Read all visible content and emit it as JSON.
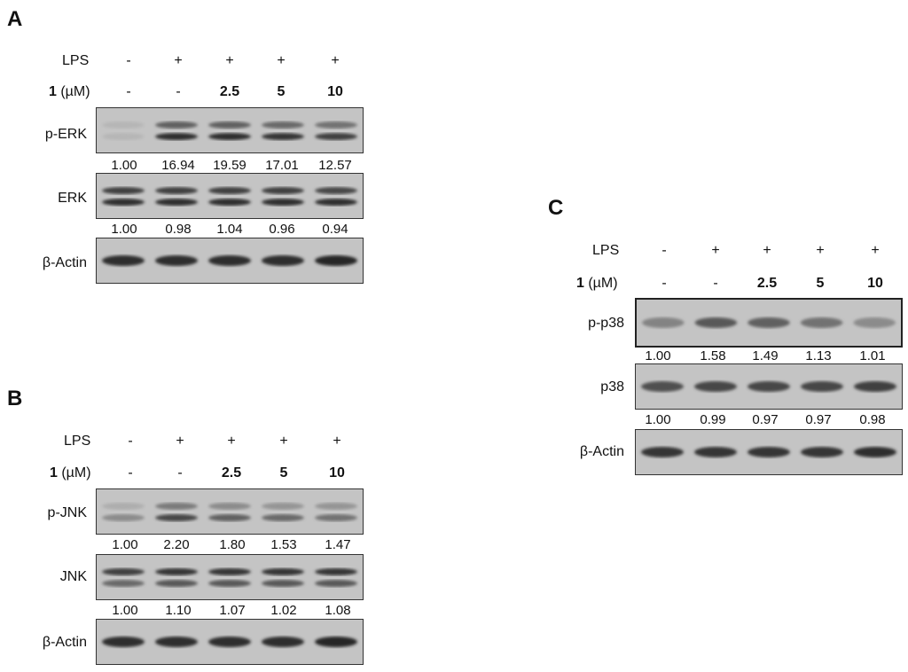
{
  "panels": [
    {
      "letter": "A",
      "treatment": {
        "lps_label": "LPS",
        "lps": [
          "-",
          "+",
          "+",
          "+",
          "+"
        ],
        "dose_bold": "1",
        "dose_unit": " (µM)",
        "dose": [
          "-",
          "-",
          "2.5",
          "5",
          "10"
        ]
      },
      "blots": [
        {
          "label": "p-ERK",
          "bands": 2,
          "quant": [
            "1.00",
            "16.94",
            "19.59",
            "17.01",
            "12.57"
          ]
        },
        {
          "label": "ERK",
          "bands": 2,
          "quant": [
            "1.00",
            "0.98",
            "1.04",
            "0.96",
            "0.94"
          ]
        },
        {
          "label": "β-Actin",
          "bands": 1,
          "quant": []
        }
      ]
    },
    {
      "letter": "B",
      "treatment": {
        "lps_label": "LPS",
        "lps": [
          "-",
          "+",
          "+",
          "+",
          "+"
        ],
        "dose_bold": "1",
        "dose_unit": " (µM)",
        "dose": [
          "-",
          "-",
          "2.5",
          "5",
          "10"
        ]
      },
      "blots": [
        {
          "label": "p-JNK",
          "bands": 2,
          "quant": [
            "1.00",
            "2.20",
            "1.80",
            "1.53",
            "1.47"
          ]
        },
        {
          "label": "JNK",
          "bands": 2,
          "quant": [
            "1.00",
            "1.10",
            "1.07",
            "1.02",
            "1.08"
          ]
        },
        {
          "label": "β-Actin",
          "bands": 1,
          "quant": []
        }
      ]
    },
    {
      "letter": "C",
      "treatment": {
        "lps_label": "LPS",
        "lps": [
          "-",
          "+",
          "+",
          "+",
          "+"
        ],
        "dose_bold": "1",
        "dose_unit": " (µM)",
        "dose": [
          "-",
          "-",
          "2.5",
          "5",
          "10"
        ]
      },
      "blots": [
        {
          "label": "p-p38",
          "bands": 1,
          "quant": [
            "1.00",
            "1.58",
            "1.49",
            "1.13",
            "1.01"
          ]
        },
        {
          "label": "p38",
          "bands": 1,
          "quant": [
            "1.00",
            "0.99",
            "0.97",
            "0.97",
            "0.98"
          ]
        },
        {
          "label": "β-Actin",
          "bands": 1,
          "quant": []
        }
      ]
    }
  ],
  "band_intensity": {
    "A": [
      [
        [
          0.05,
          0.05
        ],
        [
          0.55,
          0.85
        ],
        [
          0.55,
          0.85
        ],
        [
          0.5,
          0.8
        ],
        [
          0.45,
          0.75
        ]
      ],
      [
        [
          0.75,
          0.85
        ],
        [
          0.75,
          0.85
        ],
        [
          0.75,
          0.85
        ],
        [
          0.75,
          0.85
        ],
        [
          0.7,
          0.85
        ]
      ],
      [
        [
          0.85
        ],
        [
          0.85
        ],
        [
          0.85
        ],
        [
          0.85
        ],
        [
          0.9
        ]
      ]
    ],
    "B": [
      [
        [
          0.1,
          0.3
        ],
        [
          0.4,
          0.7
        ],
        [
          0.3,
          0.55
        ],
        [
          0.25,
          0.5
        ],
        [
          0.25,
          0.45
        ]
      ],
      [
        [
          0.75,
          0.5
        ],
        [
          0.8,
          0.6
        ],
        [
          0.8,
          0.6
        ],
        [
          0.8,
          0.6
        ],
        [
          0.8,
          0.6
        ]
      ],
      [
        [
          0.85
        ],
        [
          0.85
        ],
        [
          0.85
        ],
        [
          0.85
        ],
        [
          0.9
        ]
      ]
    ],
    "C": [
      [
        [
          0.35
        ],
        [
          0.6
        ],
        [
          0.55
        ],
        [
          0.45
        ],
        [
          0.3
        ]
      ],
      [
        [
          0.65
        ],
        [
          0.7
        ],
        [
          0.7
        ],
        [
          0.7
        ],
        [
          0.75
        ]
      ],
      [
        [
          0.8
        ],
        [
          0.8
        ],
        [
          0.8
        ],
        [
          0.8
        ],
        [
          0.85
        ]
      ]
    ]
  }
}
